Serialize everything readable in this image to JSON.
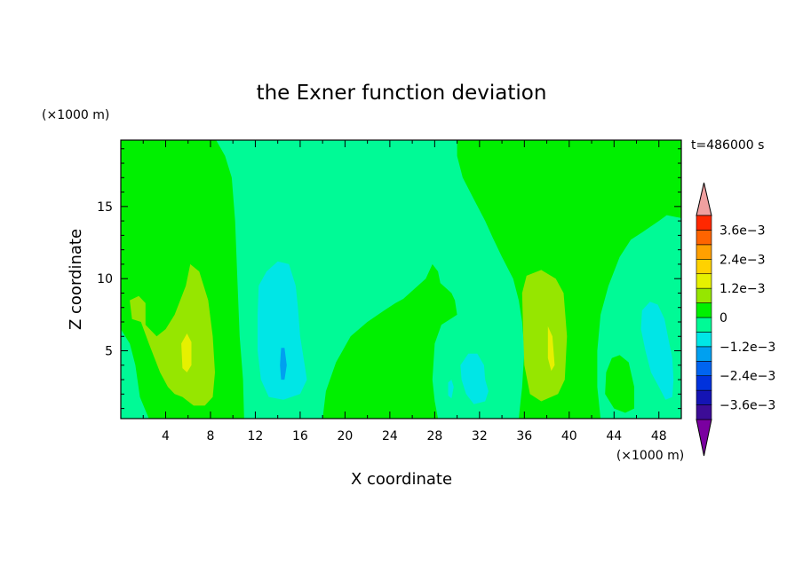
{
  "chart_data": {
    "type": "heatmap",
    "title": "the Exner function deviation",
    "xlabel": "X coordinate",
    "ylabel": "Z coordinate",
    "x_unit": "(×1000 m)",
    "y_unit": "(×1000 m)",
    "time_label": "t=486000 s",
    "xlim": [
      0,
      50
    ],
    "ylim": [
      0.3,
      19.6
    ],
    "x_ticks": [
      4,
      8,
      12,
      16,
      20,
      24,
      28,
      32,
      36,
      40,
      44,
      48
    ],
    "y_ticks": [
      5,
      10,
      15
    ],
    "colorbar": {
      "levels": [
        -0.0042,
        -0.0036,
        -0.003,
        -0.0024,
        -0.0018,
        -0.0012,
        -0.0006,
        0,
        0.0006,
        0.0012,
        0.0018,
        0.0024,
        0.003,
        0.0036,
        0.0042
      ],
      "colors": [
        "#7a00a0",
        "#3c0c96",
        "#1414b4",
        "#0032dc",
        "#0064f0",
        "#00a0f0",
        "#00e6e6",
        "#00fa96",
        "#00f000",
        "#96e600",
        "#e6f000",
        "#ffd200",
        "#ffa000",
        "#ff6400",
        "#ff2800",
        "#f0a0a0"
      ],
      "tick_labels": [
        {
          "value": 0.0036,
          "label": "3.6e−3"
        },
        {
          "value": 0.0024,
          "label": "2.4e−3"
        },
        {
          "value": 0.0012,
          "label": "1.2e−3"
        },
        {
          "value": 0,
          "label": "0"
        },
        {
          "value": -0.0012,
          "label": "−1.2e−3"
        },
        {
          "value": -0.0024,
          "label": "−2.4e−3"
        },
        {
          "value": -0.0036,
          "label": "−3.6e−3"
        }
      ]
    },
    "regions": [
      {
        "name": "teal-background",
        "color": "#00fa96",
        "points": [
          [
            0,
            0.3
          ],
          [
            50,
            0.3
          ],
          [
            50,
            19.6
          ],
          [
            0,
            19.6
          ]
        ]
      },
      {
        "name": "green-left-column",
        "color": "#00f000",
        "points": [
          [
            0,
            19.6
          ],
          [
            8.5,
            19.6
          ],
          [
            9.3,
            18.5
          ],
          [
            9.9,
            17
          ],
          [
            10.2,
            14
          ],
          [
            10.4,
            10
          ],
          [
            10.6,
            6
          ],
          [
            10.9,
            3
          ],
          [
            11,
            0.3
          ],
          [
            2.5,
            0.3
          ],
          [
            1.7,
            1.8
          ],
          [
            1.3,
            4
          ],
          [
            0.8,
            5.5
          ],
          [
            0,
            6.5
          ]
        ]
      },
      {
        "name": "green-middle-band",
        "color": "#00f000",
        "points": [
          [
            18,
            0.3
          ],
          [
            18.3,
            2.2
          ],
          [
            19.2,
            4.2
          ],
          [
            20.5,
            6
          ],
          [
            22,
            7
          ],
          [
            23.5,
            7.8
          ],
          [
            24.5,
            8.3
          ],
          [
            25.2,
            8.6
          ],
          [
            26.5,
            9.5
          ],
          [
            27.2,
            10
          ],
          [
            27.8,
            11
          ],
          [
            28.3,
            10.5
          ],
          [
            28.5,
            9.7
          ],
          [
            29.5,
            9
          ],
          [
            29.8,
            8.5
          ],
          [
            30,
            7.5
          ],
          [
            28.6,
            6.8
          ],
          [
            28,
            5.5
          ],
          [
            27.8,
            3
          ],
          [
            28,
            1.5
          ],
          [
            28.3,
            0.3
          ]
        ]
      },
      {
        "name": "green-right-band",
        "color": "#00f000",
        "points": [
          [
            30,
            19.6
          ],
          [
            50,
            19.6
          ],
          [
            50,
            14.2
          ],
          [
            48.7,
            14.4
          ],
          [
            48,
            14
          ],
          [
            46.5,
            13.2
          ],
          [
            45.5,
            12.7
          ],
          [
            44.5,
            11.5
          ],
          [
            43.5,
            9.5
          ],
          [
            42.8,
            7.5
          ],
          [
            42.5,
            5
          ],
          [
            42.5,
            2.5
          ],
          [
            42.8,
            0.3
          ],
          [
            35.5,
            0.3
          ],
          [
            35.8,
            2.5
          ],
          [
            36,
            5
          ],
          [
            35.8,
            7
          ],
          [
            35.5,
            8.5
          ],
          [
            35,
            10
          ],
          [
            34,
            11.5
          ],
          [
            33.2,
            12.8
          ],
          [
            32.5,
            14
          ],
          [
            31.5,
            15.5
          ],
          [
            30.5,
            17
          ],
          [
            30,
            18.5
          ]
        ]
      },
      {
        "name": "teal-right-lobe",
        "color": "#00fa96",
        "points": [
          [
            43.5,
            0.3
          ],
          [
            47.5,
            0.3
          ],
          [
            47.3,
            2
          ],
          [
            47,
            4
          ],
          [
            46.3,
            5.5
          ],
          [
            45.8,
            7
          ],
          [
            45.5,
            8.5
          ],
          [
            45.3,
            10.5
          ],
          [
            46,
            12
          ],
          [
            47.2,
            12.6
          ],
          [
            48.5,
            12.6
          ],
          [
            50,
            12.3
          ],
          [
            50,
            0.3
          ]
        ]
      },
      {
        "name": "yellowgreen-left",
        "color": "#96e600",
        "points": [
          [
            0.8,
            8.5
          ],
          [
            1.6,
            8.8
          ],
          [
            2.2,
            8.3
          ],
          [
            2.2,
            6.8
          ],
          [
            3.2,
            6
          ],
          [
            4,
            6.5
          ],
          [
            4.8,
            7.5
          ],
          [
            5.8,
            9.5
          ],
          [
            6.2,
            11
          ],
          [
            7,
            10.5
          ],
          [
            7.8,
            8.5
          ],
          [
            8.2,
            6
          ],
          [
            8.4,
            3.5
          ],
          [
            8.2,
            1.8
          ],
          [
            7.5,
            1.2
          ],
          [
            6.5,
            1.2
          ],
          [
            5.5,
            1.8
          ],
          [
            4.8,
            2
          ],
          [
            4.2,
            2.5
          ],
          [
            3.5,
            3.5
          ],
          [
            2.5,
            5.5
          ],
          [
            1.8,
            7
          ],
          [
            1,
            7.2
          ]
        ]
      },
      {
        "name": "yellow-left-core",
        "color": "#e6f000",
        "points": [
          [
            5.4,
            5.5
          ],
          [
            5.9,
            6.2
          ],
          [
            6.3,
            5.6
          ],
          [
            6.3,
            4
          ],
          [
            5.9,
            3.5
          ],
          [
            5.5,
            3.8
          ]
        ]
      },
      {
        "name": "yellowgreen-right",
        "color": "#96e600",
        "points": [
          [
            35.8,
            9
          ],
          [
            36.2,
            10.2
          ],
          [
            37.5,
            10.6
          ],
          [
            38.8,
            10
          ],
          [
            39.5,
            9
          ],
          [
            39.8,
            6
          ],
          [
            39.6,
            3
          ],
          [
            39,
            2
          ],
          [
            37.5,
            1.5
          ],
          [
            36.5,
            2
          ],
          [
            36,
            4
          ],
          [
            35.9,
            6
          ]
        ]
      },
      {
        "name": "yellow-right-core",
        "color": "#e6f000",
        "points": [
          [
            38.1,
            6.7
          ],
          [
            38.5,
            6
          ],
          [
            38.7,
            4
          ],
          [
            38.4,
            3.6
          ],
          [
            38.1,
            4.5
          ]
        ]
      },
      {
        "name": "cyan-center-left",
        "color": "#00e6e6",
        "points": [
          [
            12.3,
            9.5
          ],
          [
            13,
            10.5
          ],
          [
            14,
            11.2
          ],
          [
            15,
            11
          ],
          [
            15.6,
            9.5
          ],
          [
            15.8,
            8
          ],
          [
            16,
            6
          ],
          [
            16.4,
            4
          ],
          [
            16.6,
            3
          ],
          [
            16,
            2
          ],
          [
            14.5,
            1.6
          ],
          [
            13.2,
            1.8
          ],
          [
            12.5,
            3
          ],
          [
            12.2,
            5
          ],
          [
            12.2,
            7.5
          ]
        ]
      },
      {
        "name": "deep-cyan-center-left",
        "color": "#00a0f0",
        "points": [
          [
            14.3,
            5.2
          ],
          [
            14.6,
            5.2
          ],
          [
            14.8,
            4
          ],
          [
            14.6,
            3
          ],
          [
            14.3,
            3
          ],
          [
            14.2,
            4
          ]
        ]
      },
      {
        "name": "cyan-center-right",
        "color": "#00e6e6",
        "points": [
          [
            30.3,
            4
          ],
          [
            31,
            4.8
          ],
          [
            31.8,
            4.8
          ],
          [
            32.4,
            4
          ],
          [
            32.5,
            3
          ],
          [
            32.8,
            2.2
          ],
          [
            32.5,
            1.5
          ],
          [
            31.5,
            1.3
          ],
          [
            30.8,
            2
          ],
          [
            30.4,
            3
          ]
        ]
      },
      {
        "name": "cyan-center-small",
        "color": "#00e6e6",
        "points": [
          [
            29.2,
            2.8
          ],
          [
            29.5,
            3
          ],
          [
            29.7,
            2.5
          ],
          [
            29.5,
            1.7
          ],
          [
            29.2,
            1.9
          ]
        ]
      },
      {
        "name": "cyan-right",
        "color": "#00e6e6",
        "points": [
          [
            46.5,
            7.8
          ],
          [
            47.2,
            8.4
          ],
          [
            47.9,
            8.2
          ],
          [
            48.5,
            7.2
          ],
          [
            48.8,
            6
          ],
          [
            49.2,
            4.5
          ],
          [
            49.3,
            3
          ],
          [
            49.2,
            1.8
          ],
          [
            48.6,
            1.6
          ],
          [
            48,
            2.5
          ],
          [
            47.3,
            3.5
          ],
          [
            46.8,
            5
          ],
          [
            46.4,
            6.5
          ]
        ]
      },
      {
        "name": "green-right-blob",
        "color": "#00f000",
        "points": [
          [
            43.2,
            2
          ],
          [
            43.3,
            3.5
          ],
          [
            43.8,
            4.5
          ],
          [
            44.5,
            4.7
          ],
          [
            45.3,
            4.2
          ],
          [
            45.8,
            2.5
          ],
          [
            45.8,
            1
          ],
          [
            45,
            0.7
          ],
          [
            44,
            1
          ]
        ]
      }
    ]
  }
}
